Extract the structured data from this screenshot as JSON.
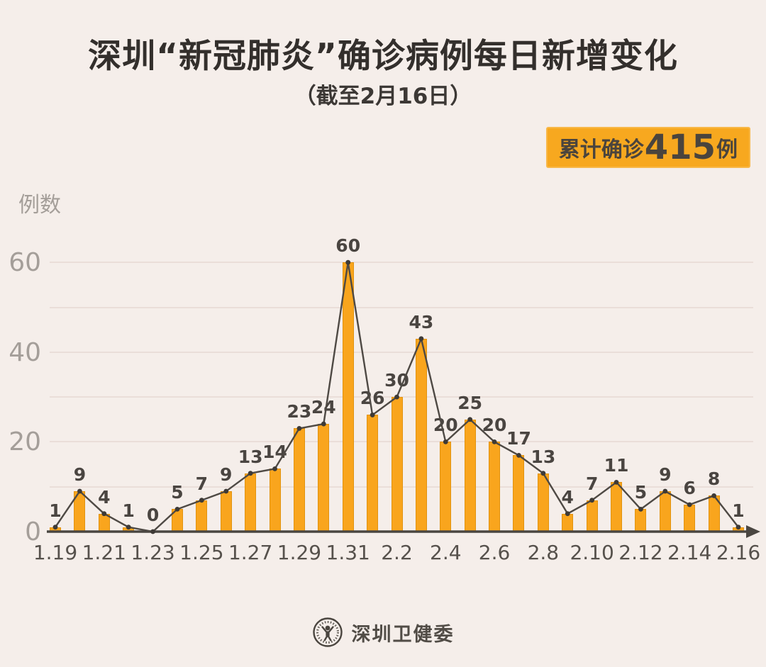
{
  "title": "深圳“新冠肺炎”确诊病例每日新增变化",
  "subtitle": "（截至2月16日）",
  "badge": {
    "prefix": "累计确诊",
    "value": "415",
    "suffix": "例",
    "bg_color": "#f7a81f",
    "text_color": "#4a443d"
  },
  "y_axis_title": "例数",
  "footer": {
    "org": "深圳卫健委",
    "logo_icon": "shenzhen-health-commission-seal"
  },
  "colors": {
    "background": "#f5eeea",
    "bar_fill": "#f9a51d",
    "bar_border": "#e2930f",
    "line": "#4e4944",
    "marker": "#3e3a36",
    "gridline": "#eaded9",
    "axis": "#4a4641",
    "y_labels": "#a49e99",
    "x_labels": "#56514c",
    "value_labels": "#4a4541",
    "title_text": "#332f2c"
  },
  "chart_data": {
    "type": "bar",
    "overlay": "line",
    "title": "深圳“新冠肺炎”确诊病例每日新增变化",
    "subtitle": "（截至2月16日）",
    "xlabel": "",
    "ylabel": "例数",
    "categories": [
      "1.19",
      "1.20",
      "1.21",
      "1.22",
      "1.23",
      "1.24",
      "1.25",
      "1.26",
      "1.27",
      "1.28",
      "1.29",
      "1.30",
      "1.31",
      "2.1",
      "2.2",
      "2.3",
      "2.4",
      "2.5",
      "2.6",
      "2.7",
      "2.8",
      "2.9",
      "2.10",
      "2.11",
      "2.12",
      "2.13",
      "2.14",
      "2.15",
      "2.16"
    ],
    "values": [
      1,
      9,
      4,
      1,
      0,
      5,
      7,
      9,
      13,
      14,
      23,
      24,
      60,
      26,
      30,
      43,
      20,
      25,
      20,
      17,
      13,
      4,
      7,
      11,
      5,
      9,
      6,
      8,
      1
    ],
    "shown_x_ticks": [
      "1.19",
      "1.21",
      "1.23",
      "1.25",
      "1.27",
      "1.29",
      "1.31",
      "2.2",
      "2.4",
      "2.6",
      "2.8",
      "2.10",
      "2.12",
      "2.14",
      "2.16"
    ],
    "yticks": [
      0,
      20,
      40,
      60
    ],
    "ylim": [
      0,
      65
    ],
    "grid": "horizontal, every 10 units",
    "legend": "none",
    "total": 415
  }
}
